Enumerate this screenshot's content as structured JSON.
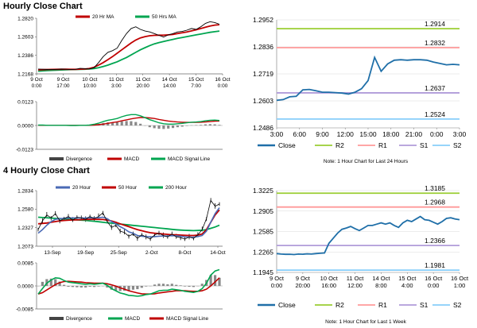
{
  "sections": {
    "hourly_title": "Hourly Close Chart",
    "four_hourly_title": "4 Hourly Close Chart"
  },
  "colors": {
    "price": "#000000",
    "ma20": "#c00000",
    "ma50": "#00a550",
    "ma200": "#00a550",
    "close": "#1f6fa8",
    "r2": "#9acd32",
    "r1": "#ff9999",
    "s1": "#b19cd9",
    "s2": "#87cefa",
    "macd": "#00a550",
    "signal": "#c00000",
    "divergence": "#888888"
  },
  "chart_data": [
    {
      "id": "hourly_price",
      "type": "line",
      "title": "",
      "legend": [
        "20 Hr MA",
        "50 Hrs MA"
      ],
      "x_tick_labels": [
        [
          "9 Oct",
          "0:00"
        ],
        [
          "9 Oct",
          "17:00"
        ],
        [
          "10 Oct",
          "10:00"
        ],
        [
          "11 Oct",
          "3:00"
        ],
        [
          "11 Oct",
          "20:00"
        ],
        [
          "14 Oct",
          "14:00"
        ],
        [
          "15 Oct",
          "7:00"
        ],
        [
          "16 Oct",
          "0:00"
        ]
      ],
      "y_tick_labels": [
        "1.2820",
        "1.2603",
        "1.2386",
        "1.2168"
      ],
      "ylim": [
        1.2168,
        1.282
      ],
      "series": [
        {
          "name": "Price",
          "values": [
            1.2225,
            1.2222,
            1.2219,
            1.2218,
            1.2221,
            1.2224,
            1.2222,
            1.2218,
            1.2221,
            1.2232,
            1.223,
            1.2226,
            1.224,
            1.23,
            1.237,
            1.242,
            1.244,
            1.247,
            1.256,
            1.264,
            1.27,
            1.272,
            1.269,
            1.267,
            1.266,
            1.264,
            1.262,
            1.26,
            1.2625,
            1.264,
            1.266,
            1.2665,
            1.268,
            1.27,
            1.269,
            1.272,
            1.276,
            1.278,
            1.277,
            1.275
          ]
        },
        {
          "name": "20 Hr MA",
          "values": [
            1.2215,
            1.2217,
            1.2219,
            1.222,
            1.2221,
            1.2222,
            1.2222,
            1.2221,
            1.2221,
            1.2223,
            1.2225,
            1.223,
            1.2245,
            1.227,
            1.23,
            1.2335,
            1.237,
            1.241,
            1.245,
            1.249,
            1.253,
            1.2565,
            1.259,
            1.2605,
            1.2615,
            1.262,
            1.2622,
            1.2622,
            1.2625,
            1.263,
            1.264,
            1.265,
            1.266,
            1.2672,
            1.2685,
            1.27,
            1.2715,
            1.273,
            1.274,
            1.2745
          ]
        },
        {
          "name": "50 Hrs MA",
          "values": [
            1.22,
            1.2203,
            1.2206,
            1.2209,
            1.2212,
            1.2214,
            1.2216,
            1.2218,
            1.2219,
            1.222,
            1.2222,
            1.2225,
            1.223,
            1.224,
            1.2255,
            1.227,
            1.229,
            1.231,
            1.2335,
            1.236,
            1.239,
            1.242,
            1.245,
            1.2475,
            1.25,
            1.252,
            1.2535,
            1.2548,
            1.256,
            1.2572,
            1.2585,
            1.2595,
            1.2605,
            1.2615,
            1.2625,
            1.2635,
            1.2645,
            1.2655,
            1.2663,
            1.267
          ]
        }
      ]
    },
    {
      "id": "hourly_macd",
      "type": "line",
      "legend": [
        "Divergence",
        "MACD",
        "MACD Signal Line"
      ],
      "y_tick_labels": [
        "0.0123",
        "0.0000",
        "-0.0123"
      ],
      "ylim": [
        -0.0123,
        0.0123
      ],
      "series": [
        {
          "name": "MACD",
          "values": [
            0.0002,
            0.0002,
            0.0001,
            0.0001,
            0.0001,
            0.0001,
            0.0001,
            0.0,
            0.0,
            0.0001,
            0.0001,
            0.0002,
            0.0006,
            0.0012,
            0.002,
            0.0027,
            0.0031,
            0.0036,
            0.0045,
            0.0052,
            0.0056,
            0.0056,
            0.005,
            0.004,
            0.003,
            0.0022,
            0.0014,
            0.0009,
            0.0007,
            0.0007,
            0.0009,
            0.0011,
            0.0014,
            0.0017,
            0.0018,
            0.002,
            0.0024,
            0.0027,
            0.0028,
            0.0026
          ]
        },
        {
          "name": "MACD Signal Line",
          "values": [
            0.0001,
            0.0001,
            0.0001,
            0.0001,
            0.0001,
            0.0001,
            0.0001,
            0.0001,
            0.0001,
            0.0001,
            0.0001,
            0.0001,
            0.0002,
            0.0004,
            0.0007,
            0.0011,
            0.0015,
            0.0019,
            0.0024,
            0.0029,
            0.0034,
            0.0038,
            0.0041,
            0.0041,
            0.0039,
            0.0036,
            0.0031,
            0.0027,
            0.0023,
            0.002,
            0.0018,
            0.0017,
            0.0016,
            0.0016,
            0.0016,
            0.0017,
            0.0018,
            0.002,
            0.0022,
            0.0023
          ]
        },
        {
          "name": "Divergence",
          "values": [
            0.0001,
            0.0001,
            0.0,
            0.0,
            0.0,
            0.0,
            0.0,
            -0.0001,
            -0.0001,
            0.0,
            0.0,
            0.0001,
            0.0004,
            0.0008,
            0.0013,
            0.0016,
            0.0016,
            0.0017,
            0.0021,
            0.0023,
            0.0022,
            0.0018,
            0.0009,
            -0.0001,
            -0.0009,
            -0.0014,
            -0.0017,
            -0.0018,
            -0.0016,
            -0.0013,
            -0.0009,
            -0.0006,
            -0.0002,
            0.0001,
            0.0002,
            0.0003,
            0.0006,
            0.0007,
            0.0006,
            0.0003
          ]
        }
      ]
    },
    {
      "id": "hourly_close_24h",
      "type": "line",
      "legend": [
        "Close",
        "R2",
        "R1",
        "S1",
        "S2"
      ],
      "x_tick_labels": [
        "3:00",
        "6:00",
        "9:00",
        "12:00",
        "15:00",
        "18:00",
        "21:00",
        "0:00",
        "3:00"
      ],
      "y_tick_labels": [
        "1.2952",
        "1.2836",
        "1.2719",
        "1.2603",
        "1.2486"
      ],
      "ylim": [
        1.2486,
        1.2952
      ],
      "levels": [
        {
          "name": "R2",
          "value": 1.2914,
          "label": "1.2914"
        },
        {
          "name": "R1",
          "value": 1.2832,
          "label": "1.2832"
        },
        {
          "name": "S1",
          "value": 1.2637,
          "label": "1.2637"
        },
        {
          "name": "S2",
          "value": 1.2524,
          "label": "1.2524"
        }
      ],
      "series": [
        {
          "name": "Close",
          "values": [
            1.2605,
            1.2608,
            1.262,
            1.2622,
            1.265,
            1.2652,
            1.2646,
            1.264,
            1.264,
            1.2638,
            1.2636,
            1.2632,
            1.264,
            1.2655,
            1.269,
            1.279,
            1.273,
            1.2762,
            1.2778,
            1.278,
            1.2778,
            1.278,
            1.278,
            1.2778,
            1.277,
            1.2764,
            1.2758,
            1.276,
            1.2758
          ]
        }
      ],
      "note": "Note: 1 Hour Chart for Last 24 Hours"
    },
    {
      "id": "four_hourly_price",
      "type": "line",
      "legend": [
        "20 Hour",
        "50 Hour",
        "200 Hour"
      ],
      "x_tick_labels": [
        "13-Sep",
        "19-Sep",
        "25-Sep",
        "2-Oct",
        "8-Oct",
        "14-Oct"
      ],
      "y_tick_labels": [
        "1.2834",
        "1.2580",
        "1.2327",
        "1.2073"
      ],
      "ylim": [
        1.2073,
        1.2834
      ],
      "series": [
        {
          "name": "Price",
          "values": [
            1.23,
            1.242,
            1.25,
            1.246,
            1.252,
            1.242,
            1.245,
            1.248,
            1.243,
            1.247,
            1.246,
            1.244,
            1.248,
            1.245,
            1.248,
            1.253,
            1.241,
            1.233,
            1.236,
            1.228,
            1.226,
            1.221,
            1.224,
            1.218,
            1.223,
            1.22,
            1.217,
            1.223,
            1.225,
            1.222,
            1.22,
            1.224,
            1.22,
            1.219,
            1.217,
            1.22,
            1.218,
            1.223,
            1.23,
            1.245,
            1.27,
            1.262,
            1.265
          ]
        },
        {
          "name": "20 Hour",
          "values": [
            1.225,
            1.23,
            1.236,
            1.241,
            1.244,
            1.245,
            1.2455,
            1.246,
            1.246,
            1.246,
            1.246,
            1.2458,
            1.2462,
            1.246,
            1.2462,
            1.247,
            1.245,
            1.241,
            1.238,
            1.234,
            1.231,
            1.227,
            1.225,
            1.222,
            1.221,
            1.2205,
            1.22,
            1.2205,
            1.221,
            1.2212,
            1.2213,
            1.2218,
            1.2215,
            1.221,
            1.22,
            1.2198,
            1.2196,
            1.2205,
            1.222,
            1.228,
            1.24,
            1.252,
            1.26
          ]
        },
        {
          "name": "50 Hour",
          "values": [
            1.238,
            1.2385,
            1.239,
            1.24,
            1.241,
            1.242,
            1.2425,
            1.243,
            1.2432,
            1.2434,
            1.2436,
            1.2438,
            1.244,
            1.2442,
            1.244,
            1.2438,
            1.243,
            1.2418,
            1.24,
            1.238,
            1.236,
            1.234,
            1.232,
            1.23,
            1.2285,
            1.227,
            1.2258,
            1.225,
            1.2245,
            1.224,
            1.2235,
            1.223,
            1.2228,
            1.2225,
            1.2222,
            1.222,
            1.222,
            1.2225,
            1.224,
            1.23,
            1.24,
            1.25,
            1.257
          ]
        },
        {
          "name": "200 Hour",
          "values": [
            1.247,
            1.2465,
            1.2462,
            1.2458,
            1.2454,
            1.245,
            1.2446,
            1.2442,
            1.2438,
            1.2434,
            1.243,
            1.2426,
            1.242,
            1.2414,
            1.2408,
            1.24,
            1.2394,
            1.2388,
            1.2382,
            1.2376,
            1.237,
            1.2364,
            1.2358,
            1.2352,
            1.2346,
            1.234,
            1.2334,
            1.2328,
            1.2322,
            1.2316,
            1.231,
            1.2304,
            1.2298,
            1.2294,
            1.229,
            1.2288,
            1.2286,
            1.2288,
            1.2292,
            1.23,
            1.2318,
            1.2336,
            1.236
          ]
        }
      ]
    },
    {
      "id": "four_hourly_macd",
      "type": "line",
      "legend": [
        "Divergence",
        "MACD",
        "MACD Signal Line"
      ],
      "y_tick_labels": [
        "0.0085",
        "0.0000",
        "-0.0085"
      ],
      "ylim": [
        -0.0085,
        0.0085
      ],
      "series": [
        {
          "name": "MACD",
          "values": [
            -0.003,
            -0.001,
            0.001,
            0.0022,
            0.003,
            0.0028,
            0.002,
            0.0014,
            0.0012,
            0.001,
            0.0008,
            0.0006,
            0.0008,
            0.0006,
            0.0008,
            0.001,
            0.0002,
            -0.001,
            -0.0018,
            -0.0026,
            -0.003,
            -0.0035,
            -0.0036,
            -0.0038,
            -0.0036,
            -0.0032,
            -0.003,
            -0.0024,
            -0.0018,
            -0.0016,
            -0.0016,
            -0.0012,
            -0.0014,
            -0.0016,
            -0.002,
            -0.0022,
            -0.0024,
            -0.002,
            -0.001,
            0.001,
            0.004,
            0.0055,
            0.006
          ]
        },
        {
          "name": "MACD Signal Line",
          "values": [
            -0.003,
            -0.0025,
            -0.0015,
            -0.0005,
            0.0005,
            0.0012,
            0.0016,
            0.0017,
            0.0016,
            0.0015,
            0.0014,
            0.0012,
            0.0011,
            0.001,
            0.001,
            0.001,
            0.0008,
            0.0004,
            -0.0001,
            -0.0007,
            -0.0012,
            -0.0018,
            -0.0022,
            -0.0026,
            -0.0029,
            -0.003,
            -0.003,
            -0.0029,
            -0.0026,
            -0.0024,
            -0.0022,
            -0.002,
            -0.0018,
            -0.0018,
            -0.0018,
            -0.0019,
            -0.002,
            -0.002,
            -0.0018,
            -0.0012,
            0.0,
            0.0015,
            0.003
          ]
        },
        {
          "name": "Divergence",
          "values": [
            0.0,
            0.0015,
            0.0025,
            0.0027,
            0.0025,
            0.0016,
            0.0004,
            -0.0003,
            -0.0004,
            -0.0005,
            -0.0006,
            -0.0006,
            -0.0003,
            -0.0004,
            -0.0002,
            0.0,
            -0.0006,
            -0.0014,
            -0.0017,
            -0.0019,
            -0.0018,
            -0.0017,
            -0.0014,
            -0.0012,
            -0.0007,
            -0.0002,
            0.0,
            0.0005,
            0.0008,
            0.0008,
            0.0006,
            0.0008,
            0.0004,
            0.0002,
            -0.0002,
            -0.0003,
            -0.0004,
            0.0,
            0.0008,
            0.0022,
            0.004,
            0.004,
            0.003
          ]
        }
      ]
    },
    {
      "id": "four_hourly_close_week",
      "type": "line",
      "legend": [
        "Close",
        "R2",
        "R1",
        "S1",
        "S2"
      ],
      "x_tick_labels": [
        [
          "9 Oct",
          "0:00"
        ],
        [
          "9 Oct",
          "20:00"
        ],
        [
          "10 Oct",
          "16:00"
        ],
        [
          "11 Oct",
          "12:00"
        ],
        [
          "14 Oct",
          "8:00"
        ],
        [
          "15 Oct",
          "4:00"
        ],
        [
          "16 Oct",
          "0:00"
        ],
        [
          "16 Oct",
          "1:00"
        ]
      ],
      "y_tick_labels": [
        "1.3225",
        "1.2905",
        "1.2585",
        "1.2265",
        "1.1945"
      ],
      "ylim": [
        1.1945,
        1.3225
      ],
      "levels": [
        {
          "name": "R2",
          "value": 1.3185,
          "label": "1.3185"
        },
        {
          "name": "R1",
          "value": 1.2968,
          "label": "1.2968"
        },
        {
          "name": "S1",
          "value": 1.2366,
          "label": "1.2366"
        },
        {
          "name": "S2",
          "value": 1.1981,
          "label": "1.1981"
        }
      ],
      "series": [
        {
          "name": "Close",
          "values": [
            1.224,
            1.2232,
            1.2228,
            1.223,
            1.2225,
            1.2232,
            1.223,
            1.2236,
            1.2232,
            1.224,
            1.2245,
            1.225,
            1.24,
            1.248,
            1.256,
            1.262,
            1.264,
            1.2665,
            1.263,
            1.26,
            1.264,
            1.268,
            1.268,
            1.27,
            1.272,
            1.27,
            1.272,
            1.268,
            1.265,
            1.272,
            1.276,
            1.274,
            1.278,
            1.282,
            1.277,
            1.276,
            1.273,
            1.27,
            1.274,
            1.279,
            1.28,
            1.278,
            1.277
          ]
        }
      ],
      "note": "Note: 1 Hour Chart for Last 1 Week"
    }
  ]
}
